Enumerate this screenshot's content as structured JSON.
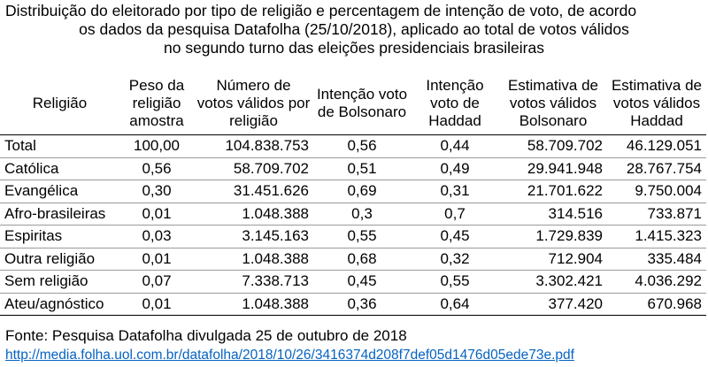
{
  "title": {
    "line1": "Distribuição do eleitorado por tipo de religião e percentagem de intenção de voto, de acordo",
    "line2": "os dados da pesquisa Datafolha (25/10/2018), aplicado ao total de votos válidos",
    "line3": "no segundo turno das eleições presidenciais brasileiras"
  },
  "table": {
    "headers": [
      "Religião",
      "Peso da religião amostra",
      "Número de votos válidos por religião",
      "Intenção voto de Bolsonaro",
      "Intenção voto de Haddad",
      "Estimativa de votos válidos Bolsonaro",
      "Estimativa de votos válidos Haddad"
    ],
    "rows": [
      [
        "Total",
        "100,00",
        "104.838.753",
        "0,56",
        "0,44",
        "58.709.702",
        "46.129.051"
      ],
      [
        "Católica",
        "0,56",
        "58.709.702",
        "0,51",
        "0,49",
        "29.941.948",
        "28.767.754"
      ],
      [
        "Evangélica",
        "0,30",
        "31.451.626",
        "0,69",
        "0,31",
        "21.701.622",
        "9.750.004"
      ],
      [
        "Afro-brasileiras",
        "0,01",
        "1.048.388",
        "0,3",
        "0,7",
        "314.516",
        "733.871"
      ],
      [
        "Espiritas",
        "0,03",
        "3.145.163",
        "0,55",
        "0,45",
        "1.729.839",
        "1.415.323"
      ],
      [
        "Outra religião",
        "0,01",
        "1.048.388",
        "0,68",
        "0,32",
        "712.904",
        "335.484"
      ],
      [
        "Sem religião",
        "0,07",
        "7.338.713",
        "0,45",
        "0,55",
        "3.302.421",
        "4.036.292"
      ],
      [
        "Ateu/agnóstico",
        "0,01",
        "1.048.388",
        "0,36",
        "0,64",
        "377.420",
        "670.968"
      ]
    ]
  },
  "source": "Fonte: Pesquisa Datafolha divulgada 25 de outubro de 2018",
  "link": "http://media.folha.uol.com.br/datafolha/2018/10/26/3416374d208f7def05d1476d05ede73e.pdf",
  "colors": {
    "link": "#0563c1",
    "text": "#000000",
    "rule": "#9a9a9a"
  }
}
